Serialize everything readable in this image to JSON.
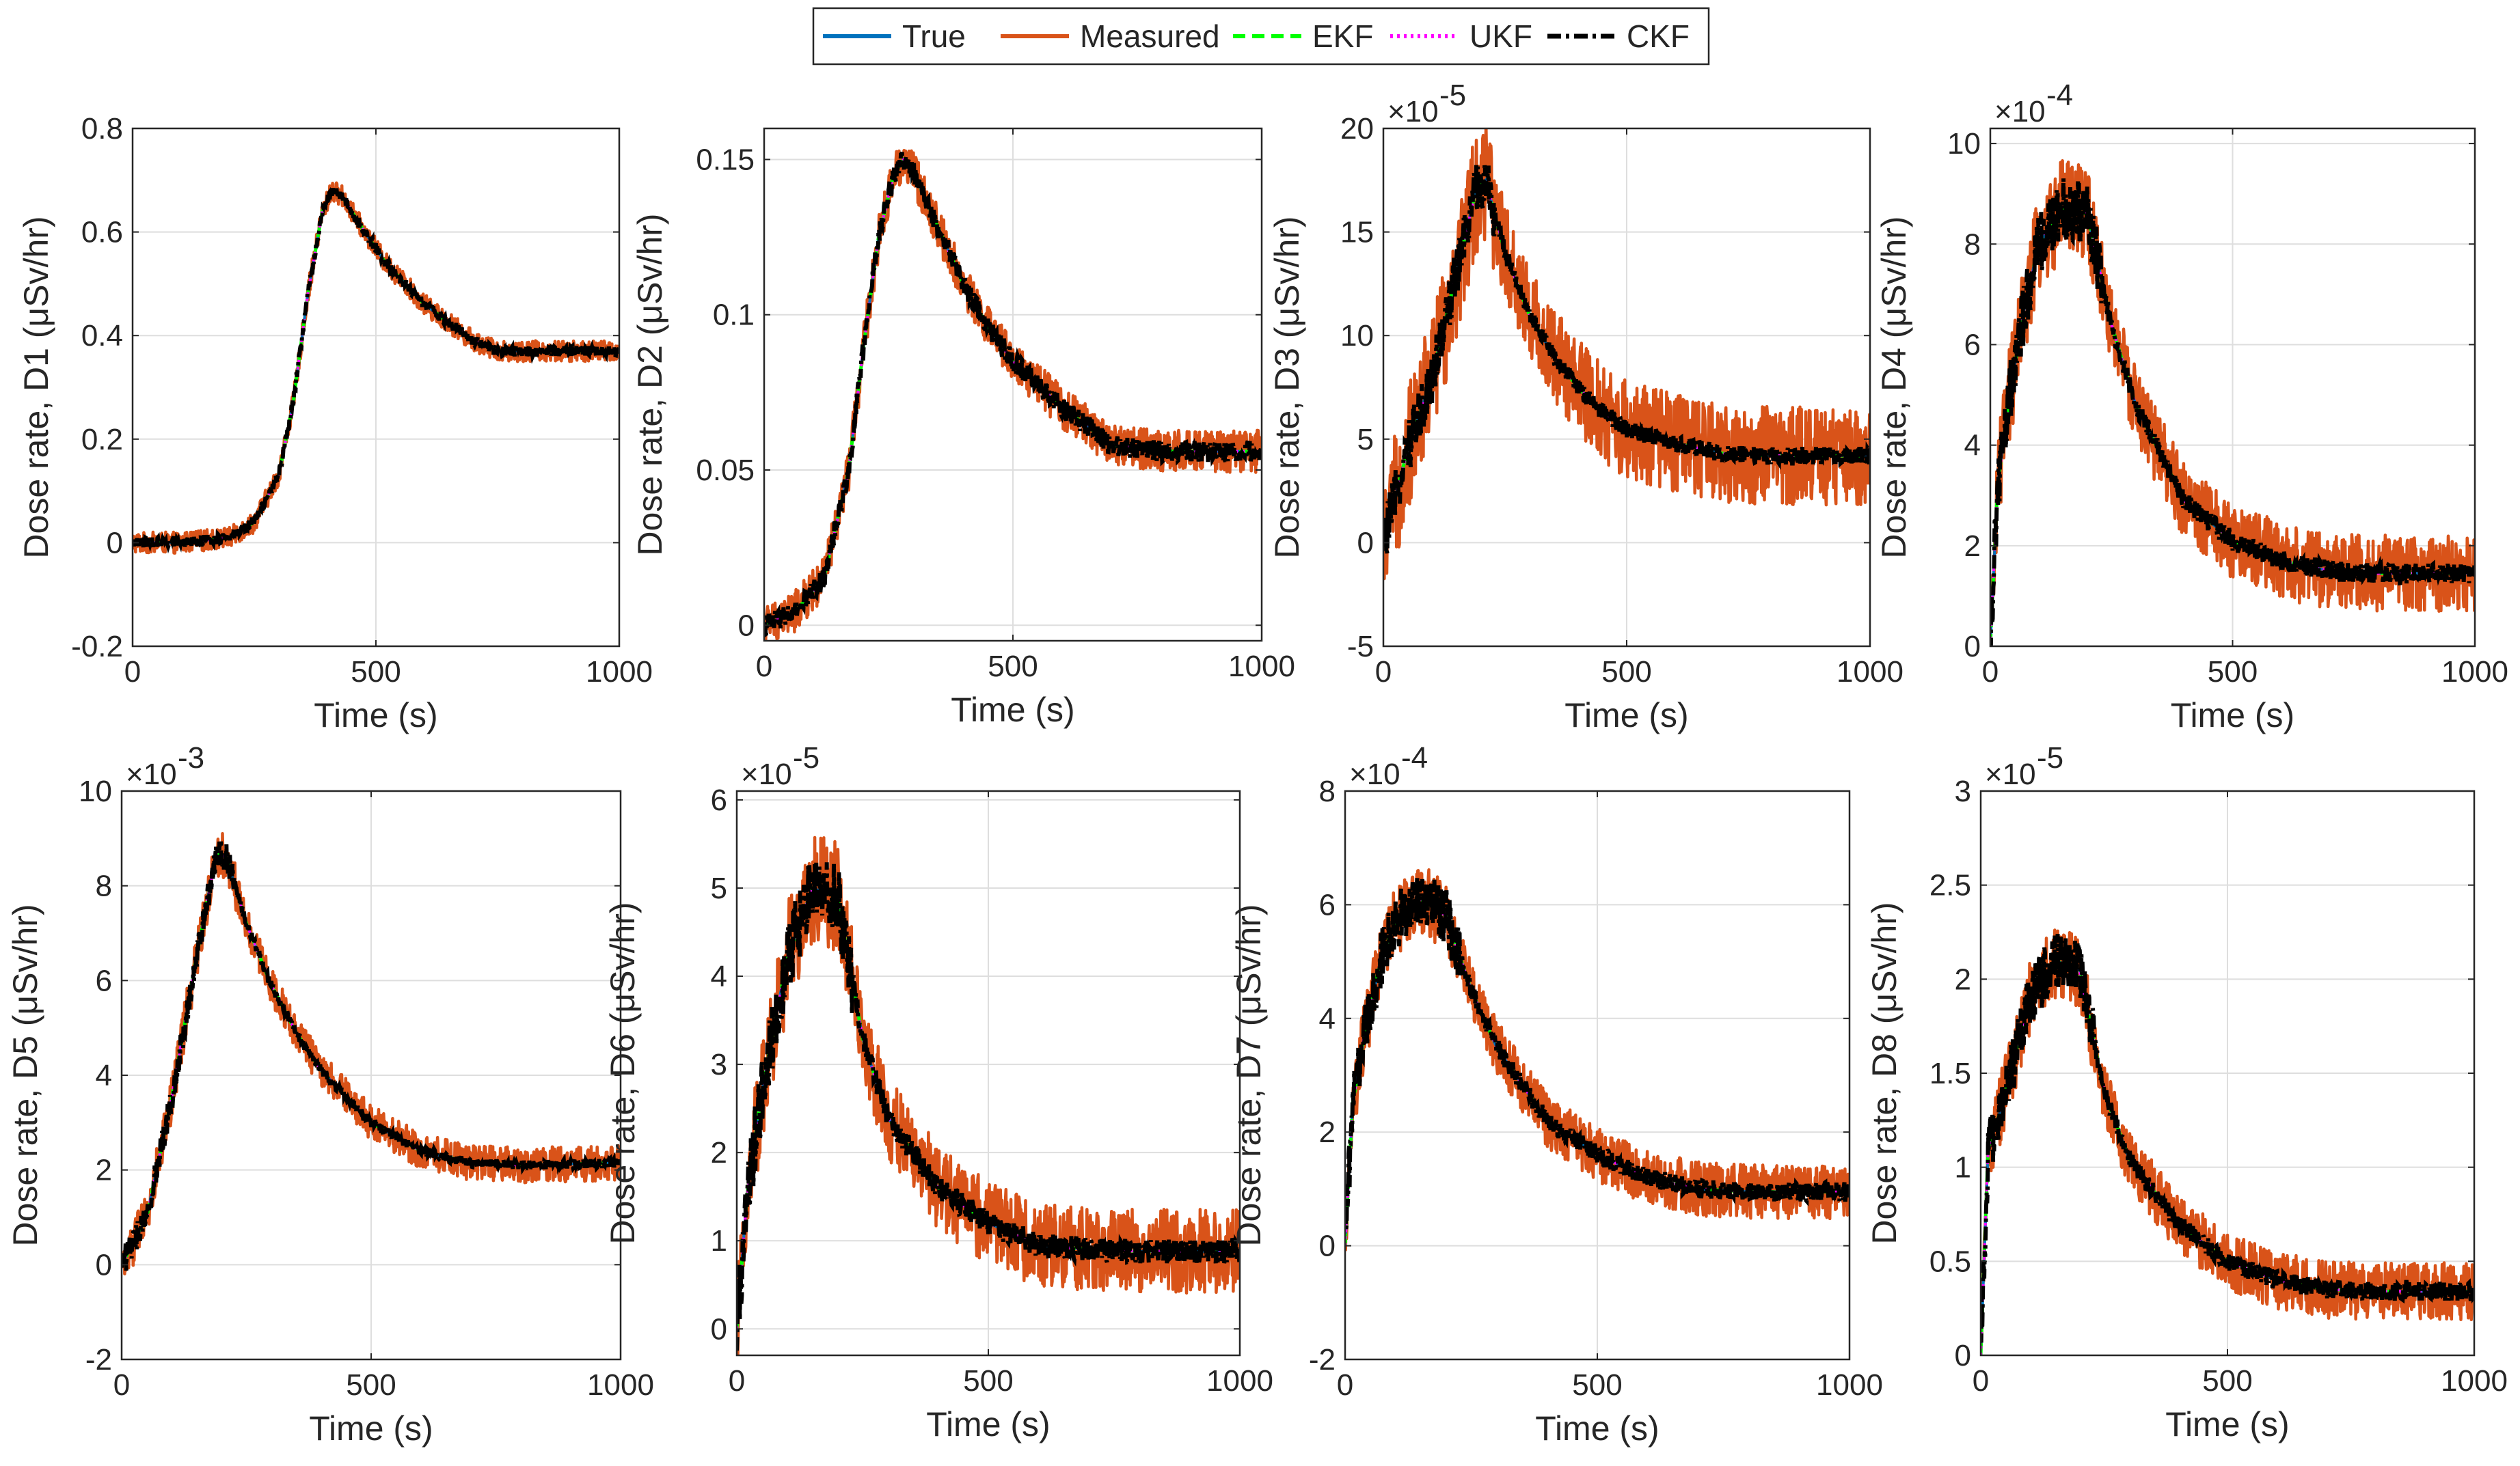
{
  "figure": {
    "legend": [
      {
        "name": "True",
        "color": "#0072BD",
        "style": "solid"
      },
      {
        "name": "Measured",
        "color": "#D95319",
        "style": "solid"
      },
      {
        "name": "EKF",
        "color": "#00FF00",
        "style": "dashed"
      },
      {
        "name": "UKF",
        "color": "#FF00FF",
        "style": "dotted"
      },
      {
        "name": "CKF",
        "color": "#000000",
        "style": "dashdot"
      }
    ]
  },
  "chart_data": [
    {
      "id": "D1",
      "type": "line",
      "title": "",
      "xlabel": "Time (s)",
      "ylabel": "Dose rate, D1 (μSv/hr)",
      "exponent": null,
      "xlim": [
        0,
        1000
      ],
      "ylim": [
        -0.2,
        0.8
      ],
      "xticks": [
        0,
        500,
        1000
      ],
      "xtick_labels": [
        "0",
        "500",
        "1000"
      ],
      "yticks": [
        -0.2,
        0,
        0.2,
        0.4,
        0.6,
        0.8
      ],
      "ytick_labels": [
        "-0.2",
        "0",
        "0.2",
        "0.4",
        "0.6",
        "0.8"
      ],
      "true_curve": {
        "x": [
          0,
          100,
          200,
          250,
          300,
          330,
          360,
          390,
          410,
          430,
          470,
          520,
          600,
          700,
          750,
          850,
          1000
        ],
        "y": [
          0,
          0,
          0.01,
          0.04,
          0.13,
          0.27,
          0.48,
          0.64,
          0.68,
          0.67,
          0.61,
          0.54,
          0.46,
          0.39,
          0.37,
          0.37,
          0.37
        ]
      },
      "noise": {
        "measured": 0.012,
        "ckf": 0.006
      },
      "peak_noise": false,
      "grid": true
    },
    {
      "id": "D2",
      "type": "line",
      "title": "",
      "xlabel": "Time (s)",
      "ylabel": "Dose rate, D2 (μSv/hr)",
      "exponent": null,
      "xlim": [
        0,
        1000
      ],
      "ylim": [
        -0.005,
        0.16
      ],
      "xticks": [
        0,
        500,
        1000
      ],
      "xtick_labels": [
        "0",
        "500",
        "1000"
      ],
      "yticks": [
        0,
        0.05,
        0.1,
        0.15
      ],
      "ytick_labels": [
        "0",
        "0.05",
        "0.1",
        "0.15"
      ],
      "true_curve": {
        "x": [
          0,
          60,
          120,
          170,
          200,
          230,
          260,
          280,
          300,
          350,
          400,
          450,
          500,
          600,
          700,
          800,
          1000
        ],
        "y": [
          0,
          0.004,
          0.015,
          0.05,
          0.09,
          0.125,
          0.145,
          0.15,
          0.146,
          0.128,
          0.11,
          0.096,
          0.085,
          0.07,
          0.058,
          0.056,
          0.056
        ]
      },
      "noise": {
        "measured": 0.004,
        "ckf": 0.002
      },
      "peak_noise": false,
      "grid": true
    },
    {
      "id": "D3",
      "type": "line",
      "title": "",
      "xlabel": "Time (s)",
      "ylabel": "Dose rate, D3 (μSv/hr)",
      "exponent": "-5",
      "xlim": [
        0,
        1000
      ],
      "ylim": [
        -5,
        20
      ],
      "xticks": [
        0,
        500,
        1000
      ],
      "xtick_labels": [
        "0",
        "500",
        "1000"
      ],
      "yticks": [
        -5,
        0,
        5,
        10,
        15,
        20
      ],
      "ytick_labels": [
        "-5",
        "0",
        "5",
        "10",
        "15",
        "20"
      ],
      "true_curve": {
        "x": [
          0,
          50,
          100,
          150,
          190,
          210,
          250,
          300,
          350,
          400,
          450,
          500,
          600,
          700,
          800,
          1000
        ],
        "y": [
          0,
          4.5,
          8,
          13,
          17,
          17.5,
          14,
          11,
          9,
          7.5,
          6.3,
          5.5,
          4.8,
          4.3,
          4.2,
          4.2
        ]
      },
      "noise": {
        "measured": 1.4,
        "ckf": 0.25
      },
      "peak_noise": true,
      "grid": true
    },
    {
      "id": "D4",
      "type": "line",
      "title": "",
      "xlabel": "Time (s)",
      "ylabel": "Dose rate, D4 (μSv/hr)",
      "exponent": "-4",
      "xlim": [
        0,
        1000
      ],
      "ylim": [
        0,
        10.3
      ],
      "xticks": [
        0,
        500,
        1000
      ],
      "xtick_labels": [
        "0",
        "500",
        "1000"
      ],
      "yticks": [
        0,
        2,
        4,
        6,
        8,
        10
      ],
      "ytick_labels": [
        "0",
        "2",
        "4",
        "6",
        "8",
        "10"
      ],
      "true_curve": {
        "x": [
          0,
          15,
          40,
          70,
          100,
          150,
          200,
          250,
          300,
          400,
          500,
          600,
          700,
          800,
          1000
        ],
        "y": [
          0,
          3.2,
          5,
          6.7,
          8,
          8.7,
          8.6,
          6.4,
          4.8,
          2.9,
          2.1,
          1.7,
          1.5,
          1.45,
          1.45
        ]
      },
      "noise": {
        "measured": 0.45,
        "ckf": 0.12
      },
      "peak_noise": true,
      "grid": true
    },
    {
      "id": "D5",
      "type": "line",
      "title": "",
      "xlabel": "Time (s)",
      "ylabel": "Dose rate, D5 (μSv/hr)",
      "exponent": "-3",
      "xlim": [
        0,
        1000
      ],
      "ylim": [
        -2,
        10
      ],
      "xticks": [
        0,
        500,
        1000
      ],
      "xtick_labels": [
        "0",
        "500",
        "1000"
      ],
      "yticks": [
        -2,
        0,
        2,
        4,
        6,
        8,
        10
      ],
      "ytick_labels": [
        "-2",
        "0",
        "2",
        "4",
        "6",
        "8",
        "10"
      ],
      "true_curve": {
        "x": [
          0,
          50,
          100,
          150,
          190,
          210,
          250,
          300,
          350,
          400,
          500,
          600,
          700,
          800,
          1000
        ],
        "y": [
          0,
          1,
          3.5,
          6.5,
          8.7,
          8.6,
          7.2,
          5.9,
          4.9,
          4.1,
          3,
          2.4,
          2.15,
          2.1,
          2.15
        ]
      },
      "noise": {
        "measured": 0.22,
        "ckf": 0.06
      },
      "peak_noise": true,
      "grid": true
    },
    {
      "id": "D6",
      "type": "line",
      "title": "",
      "xlabel": "Time (s)",
      "ylabel": "Dose rate, D6 (μSv/hr)",
      "exponent": "-5",
      "xlim": [
        0,
        1000
      ],
      "ylim": [
        -0.3,
        6.1
      ],
      "xticks": [
        0,
        500,
        1000
      ],
      "xtick_labels": [
        "0",
        "500",
        "1000"
      ],
      "yticks": [
        0,
        1,
        2,
        3,
        4,
        5,
        6
      ],
      "ytick_labels": [
        "0",
        "1",
        "2",
        "3",
        "4",
        "5",
        "6"
      ],
      "true_curve": {
        "x": [
          0,
          20,
          50,
          100,
          150,
          200,
          250,
          300,
          400,
          500,
          600,
          700,
          800,
          1000
        ],
        "y": [
          0,
          1.5,
          2.7,
          4.2,
          5,
          4.9,
          3.3,
          2.4,
          1.6,
          1.2,
          0.95,
          0.9,
          0.88,
          0.88
        ]
      },
      "noise": {
        "measured": 0.28,
        "ckf": 0.08
      },
      "peak_noise": true,
      "grid": true
    },
    {
      "id": "D7",
      "type": "line",
      "title": "",
      "xlabel": "Time (s)",
      "ylabel": "Dose rate, D7 (μSv/hr)",
      "exponent": "-4",
      "xlim": [
        0,
        1000
      ],
      "ylim": [
        -2,
        8
      ],
      "xticks": [
        0,
        500,
        1000
      ],
      "xtick_labels": [
        "0",
        "500",
        "1000"
      ],
      "yticks": [
        -2,
        0,
        2,
        4,
        6,
        8
      ],
      "ytick_labels": [
        "-2",
        "0",
        "2",
        "4",
        "6",
        "8"
      ],
      "true_curve": {
        "x": [
          0,
          15,
          40,
          70,
          100,
          150,
          200,
          250,
          300,
          400,
          500,
          600,
          700,
          800,
          1000
        ],
        "y": [
          0,
          2.5,
          3.8,
          5,
          5.7,
          6.1,
          5.8,
          4.5,
          3.5,
          2.2,
          1.6,
          1.2,
          1,
          0.95,
          0.95
        ]
      },
      "noise": {
        "measured": 0.28,
        "ckf": 0.1
      },
      "peak_noise": true,
      "grid": true
    },
    {
      "id": "D8",
      "type": "line",
      "title": "",
      "xlabel": "Time (s)",
      "ylabel": "Dose rate, D8 (μSv/hr)",
      "exponent": "-5",
      "xlim": [
        0,
        1000
      ],
      "ylim": [
        0,
        3
      ],
      "xticks": [
        0,
        500,
        1000
      ],
      "xtick_labels": [
        "0",
        "500",
        "1000"
      ],
      "yticks": [
        0,
        0.5,
        1,
        1.5,
        2,
        2.5,
        3
      ],
      "ytick_labels": [
        "0",
        "0.5",
        "1",
        "1.5",
        "2",
        "2.5",
        "3"
      ],
      "true_curve": {
        "x": [
          0,
          15,
          40,
          70,
          100,
          150,
          200,
          250,
          300,
          400,
          500,
          600,
          700,
          800,
          1000
        ],
        "y": [
          0,
          1.1,
          1.3,
          1.6,
          1.9,
          2.1,
          2.05,
          1.4,
          1.05,
          0.7,
          0.5,
          0.4,
          0.35,
          0.34,
          0.34
        ]
      },
      "noise": {
        "measured": 0.09,
        "ckf": 0.03
      },
      "peak_noise": true,
      "grid": true
    }
  ]
}
